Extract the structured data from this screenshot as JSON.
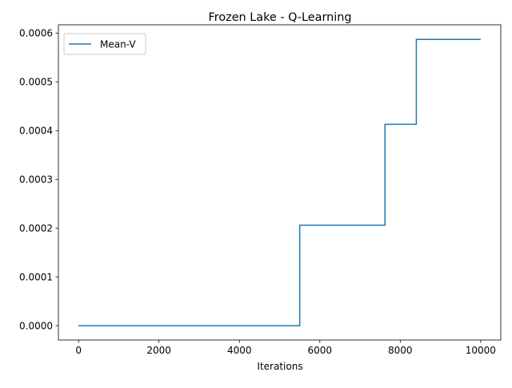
{
  "chart_data": {
    "type": "line",
    "title": "Frozen Lake - Q-Learning",
    "xlabel": "Iterations",
    "ylabel": "",
    "xlim": [
      -500,
      10500
    ],
    "ylim": [
      -2.94e-05,
      0.000617
    ],
    "xticks": [
      0,
      2000,
      4000,
      6000,
      8000,
      10000
    ],
    "xtick_labels": [
      "0",
      "2000",
      "4000",
      "6000",
      "8000",
      "10000"
    ],
    "yticks": [
      0.0,
      0.0001,
      0.0002,
      0.0003,
      0.0004,
      0.0005,
      0.0006
    ],
    "ytick_labels": [
      "0.0000",
      "0.0001",
      "0.0002",
      "0.0003",
      "0.0004",
      "0.0005",
      "0.0006"
    ],
    "grid": false,
    "legend": {
      "location": "upper left"
    },
    "series": [
      {
        "name": "Mean-V",
        "color": "#1f77b4",
        "step": true,
        "points": [
          [
            0,
            0.0
          ],
          [
            5500,
            0.0
          ],
          [
            5500,
            0.000206
          ],
          [
            7620,
            0.000206
          ],
          [
            7620,
            0.000413
          ],
          [
            8400,
            0.000413
          ],
          [
            8400,
            0.000587
          ],
          [
            10000,
            0.000587
          ]
        ]
      }
    ]
  }
}
